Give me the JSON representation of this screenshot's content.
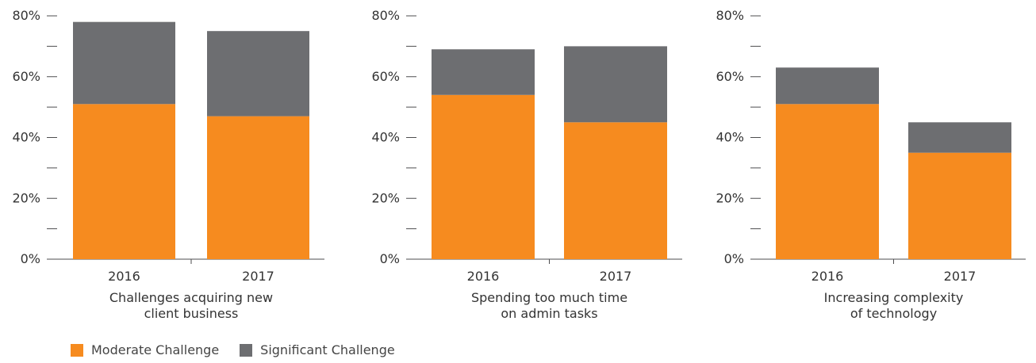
{
  "colors": {
    "moderate": "#F68B1F",
    "significant": "#6D6E71",
    "axis": "#4D4D4F",
    "text": "#333333"
  },
  "legend": [
    {
      "label": "Moderate Challenge",
      "color_key": "moderate"
    },
    {
      "label": "Significant Challenge",
      "color_key": "significant"
    }
  ],
  "chart_data": [
    {
      "type": "bar",
      "stacked": true,
      "title": "",
      "xlabel": [
        "Challenges acquiring new",
        "client business"
      ],
      "ylabel": "",
      "categories": [
        "2016",
        "2017"
      ],
      "series": [
        {
          "name": "Moderate Challenge",
          "values": [
            51,
            47
          ]
        },
        {
          "name": "Significant Challenge",
          "values": [
            27,
            28
          ]
        }
      ],
      "ylim": [
        0,
        80
      ],
      "yticks": [
        "0%",
        "20%",
        "40%",
        "60%",
        "80%"
      ],
      "grid": false
    },
    {
      "type": "bar",
      "stacked": true,
      "title": "",
      "xlabel": [
        "Spending too much time",
        "on admin tasks"
      ],
      "ylabel": "",
      "categories": [
        "2016",
        "2017"
      ],
      "series": [
        {
          "name": "Moderate Challenge",
          "values": [
            54,
            45
          ]
        },
        {
          "name": "Significant Challenge",
          "values": [
            15,
            25
          ]
        }
      ],
      "ylim": [
        0,
        80
      ],
      "yticks": [
        "0%",
        "20%",
        "40%",
        "60%",
        "80%"
      ],
      "grid": false
    },
    {
      "type": "bar",
      "stacked": true,
      "title": "",
      "xlabel": [
        "Increasing complexity",
        "of technology"
      ],
      "ylabel": "",
      "categories": [
        "2016",
        "2017"
      ],
      "series": [
        {
          "name": "Moderate Challenge",
          "values": [
            51,
            35
          ]
        },
        {
          "name": "Significant Challenge",
          "values": [
            12,
            10
          ]
        }
      ],
      "ylim": [
        0,
        80
      ],
      "yticks": [
        "0%",
        "20%",
        "40%",
        "60%",
        "80%"
      ],
      "grid": false
    }
  ]
}
